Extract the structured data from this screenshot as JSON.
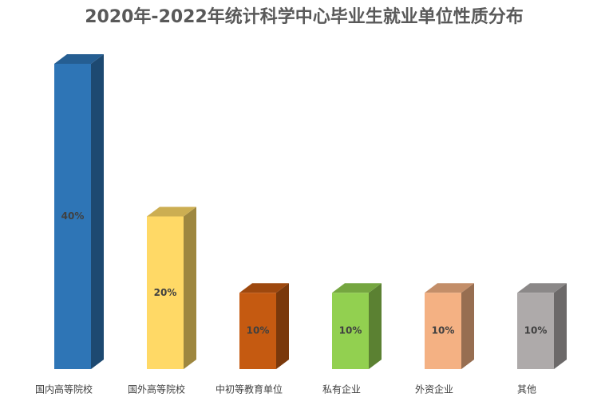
{
  "chart_data": {
    "type": "bar3d",
    "title": "2020年-2022年统计科学中心毕业生就业单位性质分布",
    "categories": [
      "国内高等院校",
      "国外高等院校",
      "中初等教育单位",
      "私有企业",
      "外资企业",
      "其他"
    ],
    "values": [
      40,
      20,
      10,
      10,
      10,
      10
    ],
    "value_labels": [
      "40%",
      "20%",
      "10%",
      "10%",
      "10%",
      "10%"
    ],
    "colors": [
      "#2e75b6",
      "#ffd966",
      "#c55a11",
      "#92d050",
      "#f4b183",
      "#aeaaaa"
    ]
  }
}
